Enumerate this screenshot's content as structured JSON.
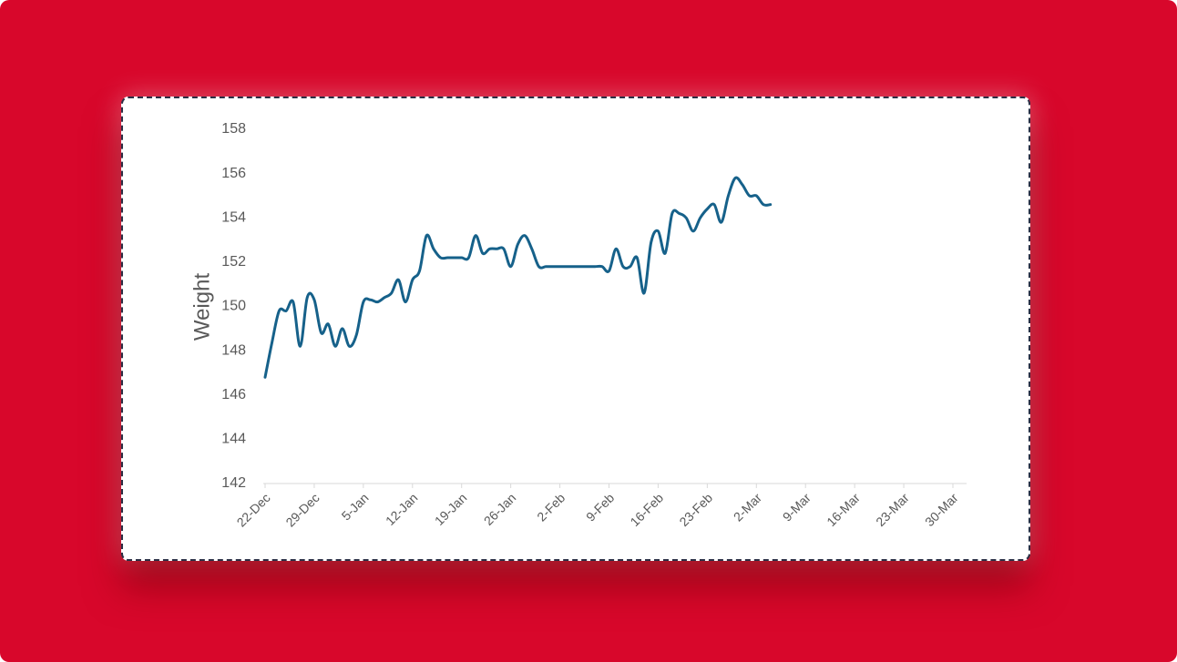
{
  "chart_data": {
    "type": "line",
    "y_label": "Weight",
    "color": "#16618a",
    "x": [
      "22-Dec",
      "23-Dec",
      "24-Dec",
      "25-Dec",
      "26-Dec",
      "27-Dec",
      "28-Dec",
      "29-Dec",
      "30-Dec",
      "31-Dec",
      "1-Jan",
      "2-Jan",
      "3-Jan",
      "4-Jan",
      "5-Jan",
      "6-Jan",
      "7-Jan",
      "8-Jan",
      "9-Jan",
      "10-Jan",
      "11-Jan",
      "12-Jan",
      "13-Jan",
      "14-Jan",
      "15-Jan",
      "16-Jan",
      "17-Jan",
      "18-Jan",
      "19-Jan",
      "20-Jan",
      "21-Jan",
      "22-Jan",
      "23-Jan",
      "24-Jan",
      "25-Jan",
      "26-Jan",
      "27-Jan",
      "28-Jan",
      "29-Jan",
      "30-Jan",
      "31-Jan",
      "1-Feb",
      "2-Feb",
      "3-Feb",
      "4-Feb",
      "5-Feb",
      "6-Feb",
      "7-Feb",
      "8-Feb",
      "9-Feb",
      "10-Feb",
      "11-Feb",
      "12-Feb",
      "13-Feb",
      "14-Feb",
      "15-Feb",
      "16-Feb",
      "17-Feb",
      "18-Feb",
      "19-Feb",
      "20-Feb",
      "21-Feb",
      "22-Feb",
      "23-Feb",
      "24-Feb",
      "25-Feb",
      "26-Feb",
      "27-Feb",
      "28-Feb",
      "1-Mar",
      "2-Mar",
      "3-Mar",
      "4-Mar"
    ],
    "values": [
      146.8,
      148.4,
      149.8,
      149.8,
      150.2,
      148.2,
      150.4,
      150.3,
      148.8,
      149.2,
      148.2,
      149.0,
      148.2,
      148.7,
      150.2,
      150.3,
      150.2,
      150.4,
      150.6,
      151.2,
      150.2,
      151.2,
      151.6,
      153.2,
      152.6,
      152.2,
      152.2,
      152.2,
      152.2,
      152.2,
      153.2,
      152.4,
      152.6,
      152.6,
      152.6,
      151.8,
      152.8,
      153.2,
      152.6,
      151.8,
      151.8,
      151.8,
      151.8,
      151.8,
      151.8,
      151.8,
      151.8,
      151.8,
      151.8,
      151.6,
      152.6,
      151.8,
      151.8,
      152.2,
      150.6,
      152.9,
      153.4,
      152.4,
      154.2,
      154.2,
      154.0,
      153.4,
      154.0,
      154.4,
      154.6,
      153.8,
      155.0,
      155.8,
      155.5,
      155.0,
      155.0,
      154.6,
      154.6
    ],
    "xlim": [
      "22-Dec",
      "30-Mar"
    ],
    "xticks": [
      "22-Dec",
      "29-Dec",
      "5-Jan",
      "12-Jan",
      "19-Jan",
      "26-Jan",
      "2-Feb",
      "9-Feb",
      "16-Feb",
      "23-Feb",
      "2-Mar",
      "9-Mar",
      "16-Mar",
      "23-Mar",
      "30-Mar"
    ],
    "ylim": [
      142,
      158
    ],
    "yticks": [
      142,
      144,
      146,
      148,
      150,
      152,
      154,
      156,
      158
    ],
    "grid": false
  }
}
